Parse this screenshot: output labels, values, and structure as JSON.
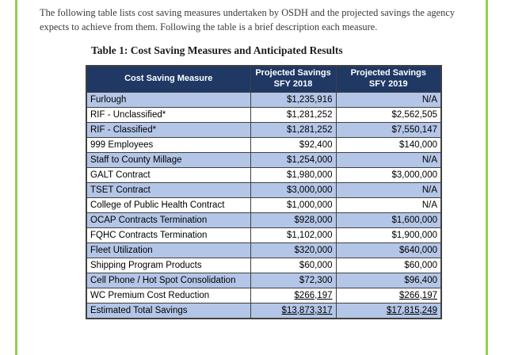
{
  "page": {
    "background_color": "#FFFFFF",
    "frame_border_color": "#92D050"
  },
  "intro_text": "The following table lists cost saving measures undertaken by OSDH and the projected savings the agency expects to achieve from them.  Following the table is a brief description each measure.",
  "table_title": "Table 1: Cost Saving Measures and Anticipated Results",
  "table": {
    "colors": {
      "header_bg": "#1F3864",
      "header_text": "#FFFFFF",
      "shaded_row_bg": "#B4C6E7",
      "plain_row_bg": "#FFFFFF",
      "border": "#404040"
    },
    "headers": [
      "Cost Saving Measure",
      "Projected Savings\nSFY 2018",
      "Projected Savings\nSFY 2019"
    ],
    "rows": [
      {
        "measure": "Furlough",
        "sfy2018": "$1,235,916",
        "sfy2019": "N/A",
        "shaded": true,
        "underline": false
      },
      {
        "measure": "RIF - Unclassified*",
        "sfy2018": "$1,281,252",
        "sfy2019": "$2,562,505",
        "shaded": false,
        "underline": false
      },
      {
        "measure": "RIF - Classified*",
        "sfy2018": "$1,281,252",
        "sfy2019": "$7,550,147",
        "shaded": true,
        "underline": false
      },
      {
        "measure": "999 Employees",
        "sfy2018": "$92,400",
        "sfy2019": "$140,000",
        "shaded": false,
        "underline": false
      },
      {
        "measure": "Staff to County Millage",
        "sfy2018": "$1,254,000",
        "sfy2019": "N/A",
        "shaded": true,
        "underline": false
      },
      {
        "measure": "GALT Contract",
        "sfy2018": "$1,980,000",
        "sfy2019": "$3,000,000",
        "shaded": false,
        "underline": false
      },
      {
        "measure": "TSET Contract",
        "sfy2018": "$3,000,000",
        "sfy2019": "N/A",
        "shaded": true,
        "underline": false
      },
      {
        "measure": "College of Public Health Contract",
        "sfy2018": "$1,000,000",
        "sfy2019": "N/A",
        "shaded": false,
        "underline": false
      },
      {
        "measure": "OCAP Contracts Termination",
        "sfy2018": "$928,000",
        "sfy2019": "$1,600,000",
        "shaded": true,
        "underline": false
      },
      {
        "measure": "FQHC Contracts Termination",
        "sfy2018": "$1,102,000",
        "sfy2019": "$1,900,000",
        "shaded": false,
        "underline": false
      },
      {
        "measure": "Fleet Utilization",
        "sfy2018": "$320,000",
        "sfy2019": "$640,000",
        "shaded": true,
        "underline": false
      },
      {
        "measure": "Shipping Program Products",
        "sfy2018": "$60,000",
        "sfy2019": "$60,000",
        "shaded": false,
        "underline": false
      },
      {
        "measure": "Cell Phone / Hot Spot Consolidation",
        "sfy2018": "$72,300",
        "sfy2019": "$96,400",
        "shaded": true,
        "underline": false
      },
      {
        "measure": "WC Premium Cost Reduction",
        "sfy2018": "$266,197",
        "sfy2019": "$266,197",
        "shaded": false,
        "underline": true
      },
      {
        "measure": "Estimated Total Savings",
        "sfy2018": "$13,873,317",
        "sfy2019": "$17,815,249",
        "shaded": true,
        "underline": true
      }
    ]
  }
}
